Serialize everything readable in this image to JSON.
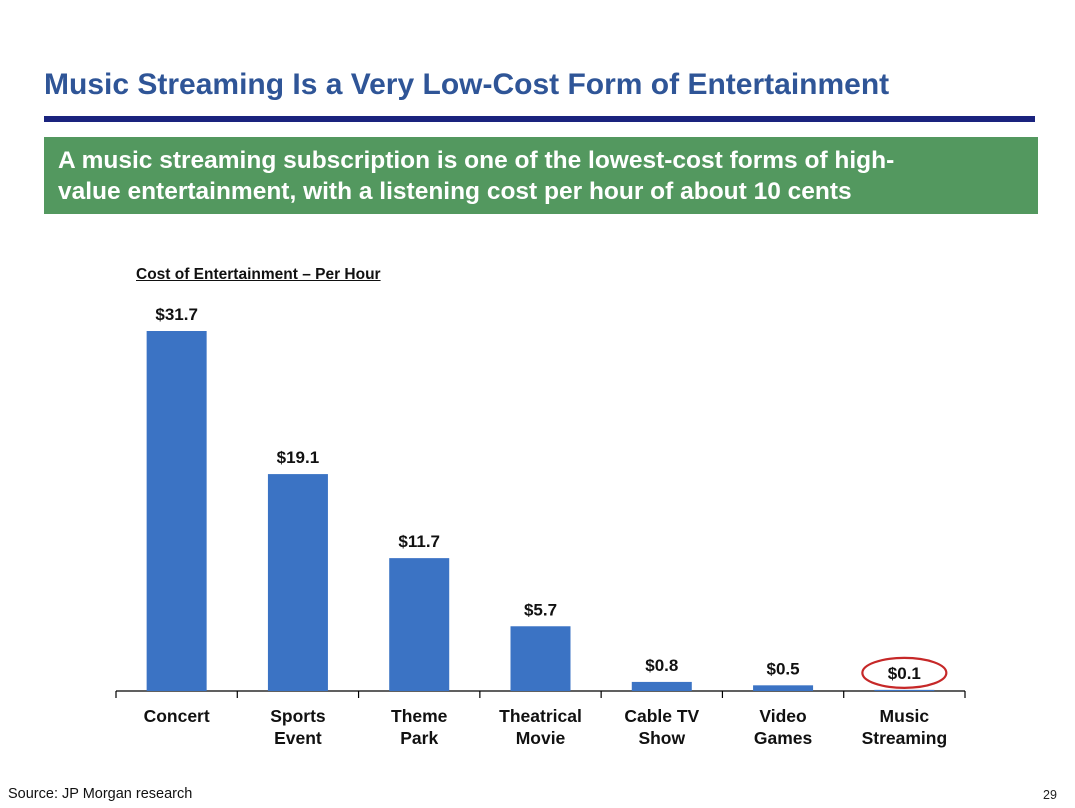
{
  "slide": {
    "title": "Music Streaming Is a Very Low-Cost Form of Entertainment",
    "banner_lines": [
      "A music streaming subscription is one of the lowest-cost forms of high-",
      "value entertainment, with a listening cost per hour of about 10 cents"
    ],
    "source": "Source: JP Morgan research",
    "page_number": "29"
  },
  "colors": {
    "title": "#2f5597",
    "rule": "#1a237e",
    "banner": "#53985f",
    "bar": "#3b73c4",
    "highlight_circle": "#c62828"
  },
  "chart_data": {
    "type": "bar",
    "title": "Cost of Entertainment – Per Hour",
    "categories": [
      [
        "Concert"
      ],
      [
        "Sports",
        "Event"
      ],
      [
        "Theme",
        "Park"
      ],
      [
        "Theatrical",
        "Movie"
      ],
      [
        "Cable TV",
        "Show"
      ],
      [
        "Video",
        "Games"
      ],
      [
        "Music",
        "Streaming"
      ]
    ],
    "values": [
      31.7,
      19.1,
      11.7,
      5.7,
      0.8,
      0.5,
      0.1
    ],
    "value_labels": [
      "$31.7",
      "$19.1",
      "$11.7",
      "$5.7",
      "$0.8",
      "$0.5",
      "$0.1"
    ],
    "highlighted_category": "Music Streaming",
    "ylim": [
      0,
      31.7
    ],
    "grid": false,
    "legend": "none"
  }
}
